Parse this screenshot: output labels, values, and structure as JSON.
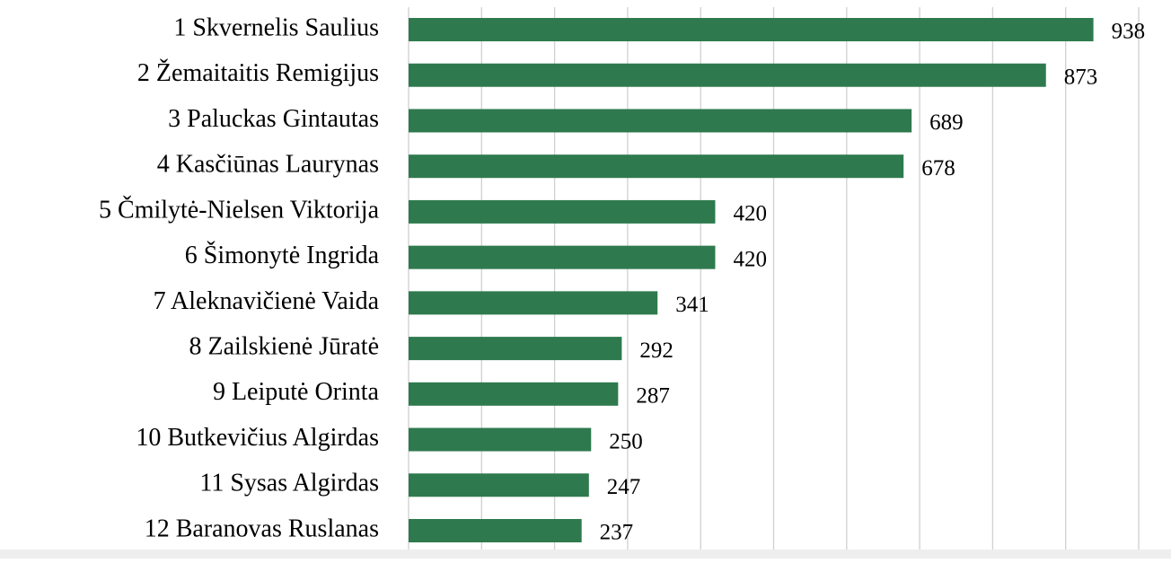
{
  "chart_data": {
    "type": "barh",
    "categories": [
      "1 Skvernelis Saulius",
      "2 Žemaitaitis Remigijus",
      "3 Paluckas Gintautas",
      "4 Kasčiūnas Laurynas",
      "5 Čmilytė-Nielsen Viktorija",
      "6 Šimonytė Ingrida",
      "7 Aleknavičienė Vaida",
      "8 Zailskienė Jūratė",
      "9 Leiputė Orinta",
      "10 Butkevičius Algirdas",
      "11 Sysas Algirdas",
      "12 Baranovas Ruslanas"
    ],
    "values": [
      938,
      873,
      689,
      678,
      420,
      420,
      341,
      292,
      287,
      250,
      247,
      237
    ],
    "color": "#2e7a4e",
    "xlim": [
      0,
      1000
    ],
    "xticks": [
      0,
      100,
      200,
      300,
      400,
      500,
      600,
      700,
      800,
      900,
      1000
    ],
    "grid": true
  }
}
